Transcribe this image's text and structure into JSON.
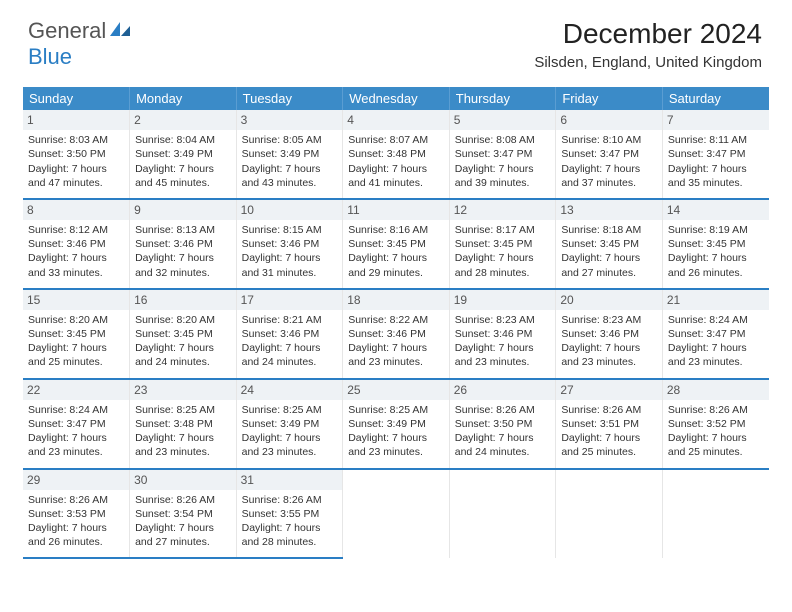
{
  "logo": {
    "part1": "General",
    "part2": "Blue"
  },
  "title": "December 2024",
  "location": "Silsden, England, United Kingdom",
  "day_headers": [
    "Sunday",
    "Monday",
    "Tuesday",
    "Wednesday",
    "Thursday",
    "Friday",
    "Saturday"
  ],
  "colors": {
    "header_bg": "#3b8bc8",
    "accent": "#2a7ec4",
    "daynum_bg": "#eef2f5"
  },
  "weeks": [
    [
      {
        "n": "1",
        "sr": "Sunrise: 8:03 AM",
        "ss": "Sunset: 3:50 PM",
        "d1": "Daylight: 7 hours",
        "d2": "and 47 minutes."
      },
      {
        "n": "2",
        "sr": "Sunrise: 8:04 AM",
        "ss": "Sunset: 3:49 PM",
        "d1": "Daylight: 7 hours",
        "d2": "and 45 minutes."
      },
      {
        "n": "3",
        "sr": "Sunrise: 8:05 AM",
        "ss": "Sunset: 3:49 PM",
        "d1": "Daylight: 7 hours",
        "d2": "and 43 minutes."
      },
      {
        "n": "4",
        "sr": "Sunrise: 8:07 AM",
        "ss": "Sunset: 3:48 PM",
        "d1": "Daylight: 7 hours",
        "d2": "and 41 minutes."
      },
      {
        "n": "5",
        "sr": "Sunrise: 8:08 AM",
        "ss": "Sunset: 3:47 PM",
        "d1": "Daylight: 7 hours",
        "d2": "and 39 minutes."
      },
      {
        "n": "6",
        "sr": "Sunrise: 8:10 AM",
        "ss": "Sunset: 3:47 PM",
        "d1": "Daylight: 7 hours",
        "d2": "and 37 minutes."
      },
      {
        "n": "7",
        "sr": "Sunrise: 8:11 AM",
        "ss": "Sunset: 3:47 PM",
        "d1": "Daylight: 7 hours",
        "d2": "and 35 minutes."
      }
    ],
    [
      {
        "n": "8",
        "sr": "Sunrise: 8:12 AM",
        "ss": "Sunset: 3:46 PM",
        "d1": "Daylight: 7 hours",
        "d2": "and 33 minutes."
      },
      {
        "n": "9",
        "sr": "Sunrise: 8:13 AM",
        "ss": "Sunset: 3:46 PM",
        "d1": "Daylight: 7 hours",
        "d2": "and 32 minutes."
      },
      {
        "n": "10",
        "sr": "Sunrise: 8:15 AM",
        "ss": "Sunset: 3:46 PM",
        "d1": "Daylight: 7 hours",
        "d2": "and 31 minutes."
      },
      {
        "n": "11",
        "sr": "Sunrise: 8:16 AM",
        "ss": "Sunset: 3:45 PM",
        "d1": "Daylight: 7 hours",
        "d2": "and 29 minutes."
      },
      {
        "n": "12",
        "sr": "Sunrise: 8:17 AM",
        "ss": "Sunset: 3:45 PM",
        "d1": "Daylight: 7 hours",
        "d2": "and 28 minutes."
      },
      {
        "n": "13",
        "sr": "Sunrise: 8:18 AM",
        "ss": "Sunset: 3:45 PM",
        "d1": "Daylight: 7 hours",
        "d2": "and 27 minutes."
      },
      {
        "n": "14",
        "sr": "Sunrise: 8:19 AM",
        "ss": "Sunset: 3:45 PM",
        "d1": "Daylight: 7 hours",
        "d2": "and 26 minutes."
      }
    ],
    [
      {
        "n": "15",
        "sr": "Sunrise: 8:20 AM",
        "ss": "Sunset: 3:45 PM",
        "d1": "Daylight: 7 hours",
        "d2": "and 25 minutes."
      },
      {
        "n": "16",
        "sr": "Sunrise: 8:20 AM",
        "ss": "Sunset: 3:45 PM",
        "d1": "Daylight: 7 hours",
        "d2": "and 24 minutes."
      },
      {
        "n": "17",
        "sr": "Sunrise: 8:21 AM",
        "ss": "Sunset: 3:46 PM",
        "d1": "Daylight: 7 hours",
        "d2": "and 24 minutes."
      },
      {
        "n": "18",
        "sr": "Sunrise: 8:22 AM",
        "ss": "Sunset: 3:46 PM",
        "d1": "Daylight: 7 hours",
        "d2": "and 23 minutes."
      },
      {
        "n": "19",
        "sr": "Sunrise: 8:23 AM",
        "ss": "Sunset: 3:46 PM",
        "d1": "Daylight: 7 hours",
        "d2": "and 23 minutes."
      },
      {
        "n": "20",
        "sr": "Sunrise: 8:23 AM",
        "ss": "Sunset: 3:46 PM",
        "d1": "Daylight: 7 hours",
        "d2": "and 23 minutes."
      },
      {
        "n": "21",
        "sr": "Sunrise: 8:24 AM",
        "ss": "Sunset: 3:47 PM",
        "d1": "Daylight: 7 hours",
        "d2": "and 23 minutes."
      }
    ],
    [
      {
        "n": "22",
        "sr": "Sunrise: 8:24 AM",
        "ss": "Sunset: 3:47 PM",
        "d1": "Daylight: 7 hours",
        "d2": "and 23 minutes."
      },
      {
        "n": "23",
        "sr": "Sunrise: 8:25 AM",
        "ss": "Sunset: 3:48 PM",
        "d1": "Daylight: 7 hours",
        "d2": "and 23 minutes."
      },
      {
        "n": "24",
        "sr": "Sunrise: 8:25 AM",
        "ss": "Sunset: 3:49 PM",
        "d1": "Daylight: 7 hours",
        "d2": "and 23 minutes."
      },
      {
        "n": "25",
        "sr": "Sunrise: 8:25 AM",
        "ss": "Sunset: 3:49 PM",
        "d1": "Daylight: 7 hours",
        "d2": "and 23 minutes."
      },
      {
        "n": "26",
        "sr": "Sunrise: 8:26 AM",
        "ss": "Sunset: 3:50 PM",
        "d1": "Daylight: 7 hours",
        "d2": "and 24 minutes."
      },
      {
        "n": "27",
        "sr": "Sunrise: 8:26 AM",
        "ss": "Sunset: 3:51 PM",
        "d1": "Daylight: 7 hours",
        "d2": "and 25 minutes."
      },
      {
        "n": "28",
        "sr": "Sunrise: 8:26 AM",
        "ss": "Sunset: 3:52 PM",
        "d1": "Daylight: 7 hours",
        "d2": "and 25 minutes."
      }
    ],
    [
      {
        "n": "29",
        "sr": "Sunrise: 8:26 AM",
        "ss": "Sunset: 3:53 PM",
        "d1": "Daylight: 7 hours",
        "d2": "and 26 minutes."
      },
      {
        "n": "30",
        "sr": "Sunrise: 8:26 AM",
        "ss": "Sunset: 3:54 PM",
        "d1": "Daylight: 7 hours",
        "d2": "and 27 minutes."
      },
      {
        "n": "31",
        "sr": "Sunrise: 8:26 AM",
        "ss": "Sunset: 3:55 PM",
        "d1": "Daylight: 7 hours",
        "d2": "and 28 minutes."
      },
      null,
      null,
      null,
      null
    ]
  ]
}
